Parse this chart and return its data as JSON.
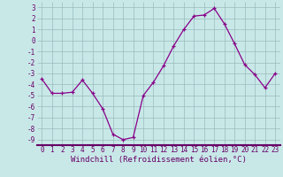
{
  "x": [
    0,
    1,
    2,
    3,
    4,
    5,
    6,
    7,
    8,
    9,
    10,
    11,
    12,
    13,
    14,
    15,
    16,
    17,
    18,
    19,
    20,
    21,
    22,
    23
  ],
  "y": [
    -3.5,
    -4.8,
    -4.8,
    -4.7,
    -3.6,
    -4.8,
    -6.2,
    -8.5,
    -9.0,
    -8.8,
    -5.0,
    -3.8,
    -2.3,
    -0.5,
    1.0,
    2.2,
    2.3,
    2.9,
    1.5,
    -0.3,
    -2.2,
    -3.1,
    -4.3,
    -3.0
  ],
  "line_color": "#880088",
  "marker": "+",
  "marker_color": "#880088",
  "bg_color": "#c8e8e8",
  "grid_color": "#99bbbb",
  "xlabel": "Windchill (Refroidissement éolien,°C)",
  "xlim": [
    -0.5,
    23.5
  ],
  "ylim": [
    -9.5,
    3.5
  ],
  "yticks": [
    3,
    2,
    1,
    0,
    -1,
    -2,
    -3,
    -4,
    -5,
    -6,
    -7,
    -8,
    -9
  ],
  "xticks": [
    0,
    1,
    2,
    3,
    4,
    5,
    6,
    7,
    8,
    9,
    10,
    11,
    12,
    13,
    14,
    15,
    16,
    17,
    18,
    19,
    20,
    21,
    22,
    23
  ],
  "tick_label_color": "#660066",
  "axis_color": "#660066",
  "xlabel_color": "#660066",
  "xlabel_fontsize": 6.5,
  "tick_fontsize": 5.5,
  "bottom_spine_color": "#660066"
}
